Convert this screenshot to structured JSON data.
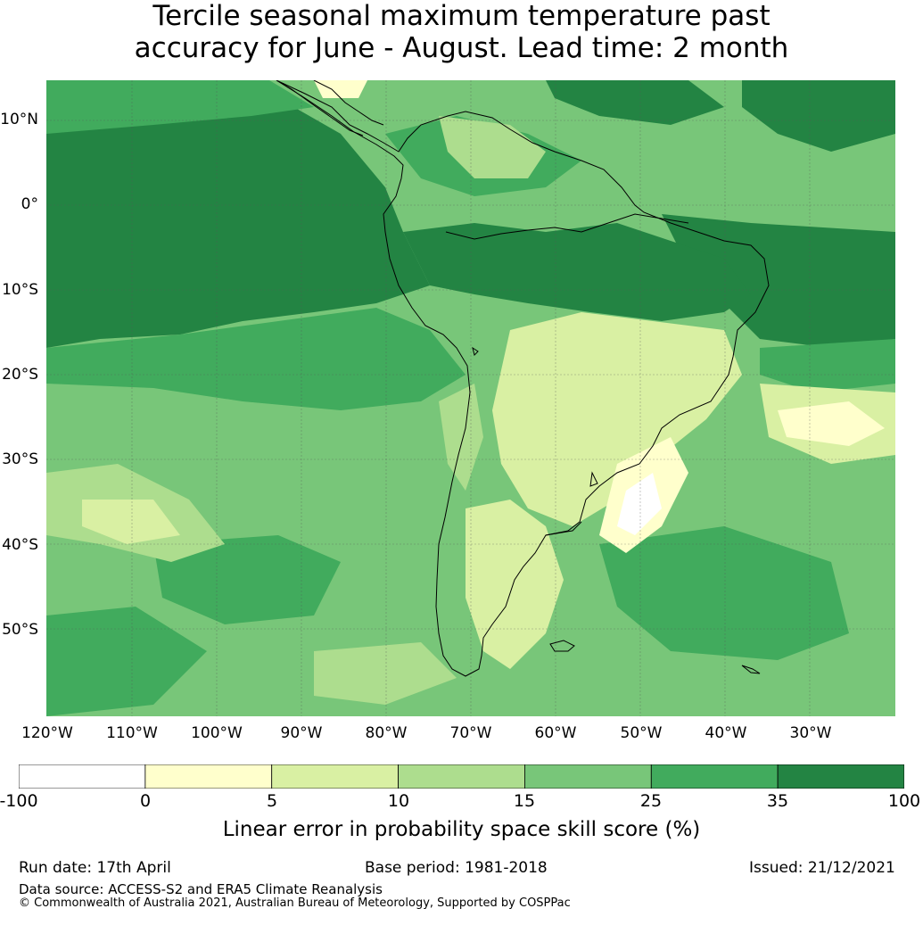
{
  "title": {
    "line1": "Tercile seasonal maximum temperature past",
    "line2": "accuracy for June - August. Lead time: 2 month"
  },
  "map": {
    "region": "South America",
    "lat_labels": [
      "10°N",
      "0°",
      "10°S",
      "20°S",
      "30°S",
      "40°S",
      "50°S"
    ],
    "lon_labels": [
      "120°W",
      "110°W",
      "100°W",
      "90°W",
      "80°W",
      "70°W",
      "60°W",
      "50°W",
      "40°W",
      "30°W"
    ],
    "lon_range": [
      -125,
      -25
    ],
    "lat_range": [
      -60,
      15
    ],
    "gridlines": true
  },
  "colorbar": {
    "ticks": [
      "-100",
      "0",
      "5",
      "10",
      "15",
      "25",
      "35",
      "100"
    ],
    "colors": [
      "#ffffff",
      "#ffffcc",
      "#d9f0a3",
      "#addd8e",
      "#78c679",
      "#41ab5d",
      "#238443"
    ],
    "label": "Linear error in probability space skill score (%)"
  },
  "footer": {
    "run_date": "Run date: 17th April",
    "base_period": "Base period: 1981-2018",
    "issued": "Issued: 21/12/2021",
    "data_source": "Data source: ACCESS-S2 and ERA5 Climate Reanalysis",
    "copyright": "© Commonwealth of Australia 2021, Australian Bureau of Meteorology, Supported by COSPPac"
  }
}
